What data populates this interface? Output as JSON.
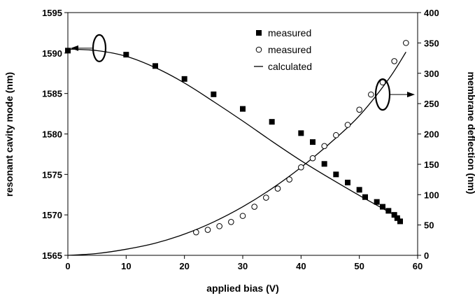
{
  "chart_data": {
    "type": "scatter",
    "xlabel": "applied bias (V)",
    "ylabel_left": "resonant cavity mode (nm)",
    "ylabel_right": "membrane deflection (nm)",
    "xlim": [
      0,
      60
    ],
    "ylim_left": [
      1565,
      1595
    ],
    "ylim_right": [
      0,
      400
    ],
    "x_ticks": [
      "0",
      "10",
      "20",
      "30",
      "40",
      "50",
      "60"
    ],
    "y_left_ticks": [
      "1565",
      "1570",
      "1575",
      "1580",
      "1585",
      "1590",
      "1595"
    ],
    "y_right_ticks": [
      "0",
      "50",
      "100",
      "150",
      "200",
      "250",
      "300",
      "350",
      "400"
    ],
    "grid": false,
    "legend_position": "top-center",
    "series": [
      {
        "name": "measured",
        "marker": "filled-square",
        "axis": "left",
        "x": [
          0,
          10,
          15,
          20,
          25,
          30,
          35,
          40,
          42,
          44,
          46,
          48,
          50,
          51,
          53,
          54,
          55,
          56,
          56.5,
          57
        ],
        "y": [
          1590.3,
          1589.8,
          1588.4,
          1586.8,
          1584.9,
          1583.1,
          1581.5,
          1580.1,
          1579.0,
          1576.3,
          1575.0,
          1574.0,
          1573.1,
          1572.2,
          1571.6,
          1571.0,
          1570.5,
          1570.0,
          1569.6,
          1569.2
        ]
      },
      {
        "name": "measured",
        "marker": "open-circle",
        "axis": "right",
        "x": [
          22,
          24,
          26,
          28,
          30,
          32,
          34,
          36,
          38,
          40,
          42,
          44,
          46,
          48,
          50,
          52,
          54,
          56,
          58
        ],
        "y": [
          38,
          42,
          48,
          55,
          65,
          80,
          95,
          110,
          125,
          145,
          160,
          180,
          198,
          215,
          240,
          265,
          285,
          320,
          350
        ]
      },
      {
        "name": "calculated",
        "style": "line",
        "segments": [
          {
            "axis": "left",
            "x": [
              0,
              5,
              10,
              15,
              20,
              25,
              30,
              35,
              40,
              45,
              50,
              55,
              57
            ],
            "y": [
              1590.5,
              1590.3,
              1589.6,
              1588.2,
              1586.3,
              1584.0,
              1581.6,
              1579.1,
              1576.7,
              1574.5,
              1572.4,
              1570.4,
              1569.6
            ]
          },
          {
            "axis": "right",
            "x": [
              0,
              5,
              10,
              15,
              20,
              25,
              30,
              35,
              40,
              45,
              50,
              55,
              58
            ],
            "y": [
              0,
              3,
              10,
              20,
              35,
              55,
              80,
              110,
              145,
              185,
              230,
              290,
              335
            ]
          }
        ]
      }
    ],
    "annotations": [
      "ellipse with arrow pointing to left axis",
      "ellipse with arrow pointing to right axis"
    ]
  }
}
